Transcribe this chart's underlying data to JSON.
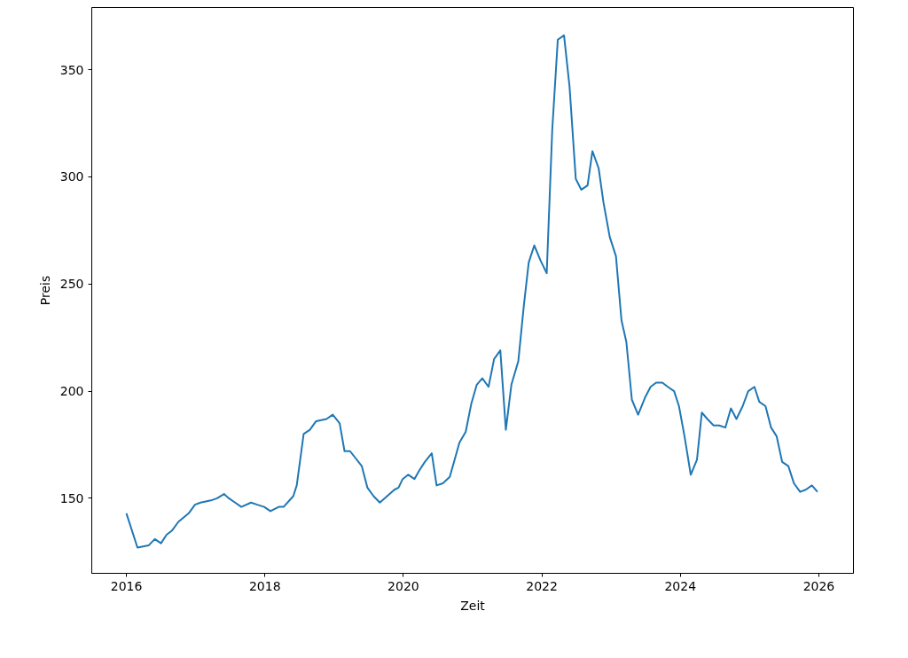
{
  "chart_data": {
    "type": "line",
    "xlabel": "Zeit",
    "ylabel": "Preis",
    "x": [
      2016.0,
      2016.16,
      2016.32,
      2016.41,
      2016.5,
      2016.58,
      2016.66,
      2016.75,
      2016.9,
      2016.99,
      2017.07,
      2017.22,
      2017.31,
      2017.41,
      2017.48,
      2017.57,
      2017.66,
      2017.8,
      2017.89,
      2017.99,
      2018.08,
      2018.2,
      2018.27,
      2018.41,
      2018.46,
      2018.56,
      2018.65,
      2018.74,
      2018.89,
      2018.98,
      2019.08,
      2019.15,
      2019.23,
      2019.4,
      2019.48,
      2019.57,
      2019.66,
      2019.87,
      2019.93,
      2019.99,
      2020.07,
      2020.16,
      2020.23,
      2020.31,
      2020.41,
      2020.48,
      2020.57,
      2020.67,
      2020.74,
      2020.81,
      2020.9,
      2020.98,
      2021.06,
      2021.14,
      2021.23,
      2021.31,
      2021.4,
      2021.48,
      2021.56,
      2021.66,
      2021.74,
      2021.81,
      2021.89,
      2021.98,
      2022.07,
      2022.15,
      2022.23,
      2022.32,
      2022.4,
      2022.49,
      2022.57,
      2022.66,
      2022.73,
      2022.82,
      2022.89,
      2022.98,
      2023.07,
      2023.15,
      2023.22,
      2023.3,
      2023.39,
      2023.49,
      2023.57,
      2023.65,
      2023.74,
      2023.82,
      2023.91,
      2023.98,
      2024.06,
      2024.15,
      2024.24,
      2024.31,
      2024.39,
      2024.48,
      2024.56,
      2024.65,
      2024.73,
      2024.81,
      2024.9,
      2024.98,
      2025.07,
      2025.14,
      2025.23,
      2025.31,
      2025.39,
      2025.47,
      2025.56,
      2025.64,
      2025.73,
      2025.81,
      2025.9,
      2025.98
    ],
    "series": [
      {
        "color": "#1f77b4",
        "values": [
          143,
          127,
          128,
          131,
          129,
          133,
          135,
          139,
          143,
          147,
          148,
          149,
          150,
          152,
          150,
          148,
          146,
          148,
          147,
          146,
          144,
          146,
          146,
          151,
          156,
          180,
          182,
          186,
          187,
          189,
          185,
          172,
          172,
          165,
          155,
          151,
          148,
          154,
          155,
          159,
          161,
          159,
          163,
          167,
          171,
          156,
          157,
          160,
          168,
          176,
          181,
          194,
          203,
          206,
          202,
          215,
          219,
          182,
          203,
          214,
          240,
          260,
          268,
          261,
          255,
          322,
          364,
          366,
          342,
          299,
          294,
          296,
          312,
          304,
          288,
          272,
          263,
          233,
          223,
          196,
          189,
          197,
          202,
          204,
          204,
          202,
          200,
          193,
          179,
          161,
          168,
          190,
          187,
          184,
          184,
          183,
          192,
          187,
          193,
          200,
          202,
          195,
          193,
          183,
          179,
          167,
          165,
          157,
          153,
          154,
          156,
          153
        ]
      }
    ],
    "xlim": [
      2015.5,
      2026.5
    ],
    "xticks": [
      2016,
      2018,
      2020,
      2022,
      2024,
      2026
    ],
    "ylim": [
      115,
      379
    ],
    "yticks": [
      150,
      200,
      250,
      300,
      350
    ],
    "grid": false
  }
}
